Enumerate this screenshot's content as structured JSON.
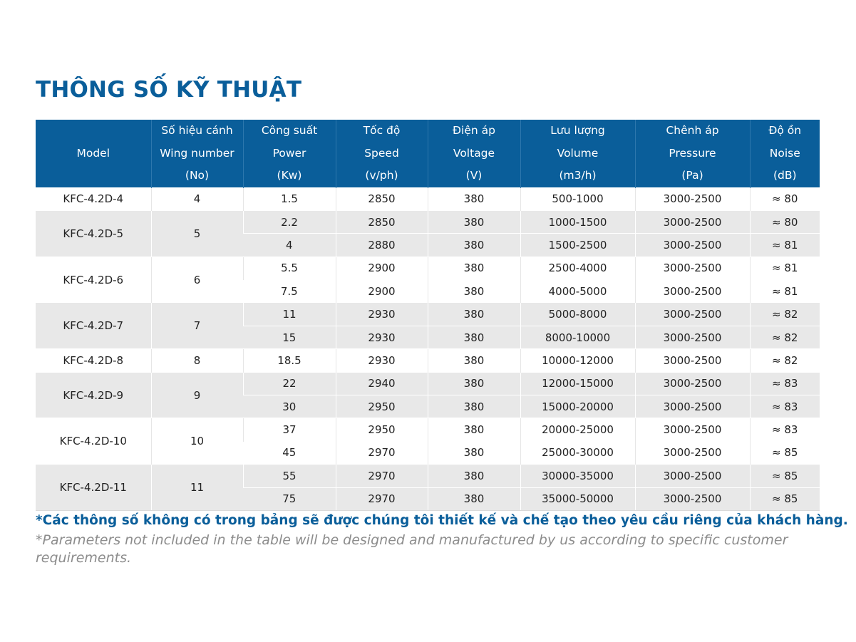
{
  "title": "THÔNG SỐ KỸ THUẬT",
  "headers": [
    {
      "lines": [
        "Model"
      ]
    },
    {
      "lines": [
        "Số hiệu cánh",
        "Wing number",
        "(No)"
      ]
    },
    {
      "lines": [
        "Công suất",
        "Power",
        "(Kw)"
      ]
    },
    {
      "lines": [
        "Tốc độ",
        "Speed",
        "(v/ph)"
      ]
    },
    {
      "lines": [
        "Điện áp",
        "Voltage",
        "(V)"
      ]
    },
    {
      "lines": [
        "Lưu lượng",
        "Volume",
        "(m3/h)"
      ]
    },
    {
      "lines": [
        "Chênh áp",
        "Pressure",
        "(Pa)"
      ]
    },
    {
      "lines": [
        "Độ ồn",
        "Noise",
        "(dB)"
      ]
    }
  ],
  "groups": [
    {
      "model": "KFC-4.2D-4",
      "wing": "4",
      "rows": [
        {
          "power": "1.5",
          "speed": "2850",
          "voltage": "380",
          "volume": "500-1000",
          "pressure": "3000-2500",
          "noise": "≈ 80"
        }
      ]
    },
    {
      "model": "KFC-4.2D-5",
      "wing": "5",
      "rows": [
        {
          "power": "2.2",
          "speed": "2850",
          "voltage": "380",
          "volume": "1000-1500",
          "pressure": "3000-2500",
          "noise": "≈ 80"
        },
        {
          "power": "4",
          "speed": "2880",
          "voltage": "380",
          "volume": "1500-2500",
          "pressure": "3000-2500",
          "noise": "≈ 81"
        }
      ]
    },
    {
      "model": "KFC-4.2D-6",
      "wing": "6",
      "rows": [
        {
          "power": "5.5",
          "speed": "2900",
          "voltage": "380",
          "volume": "2500-4000",
          "pressure": "3000-2500",
          "noise": "≈ 81"
        },
        {
          "power": "7.5",
          "speed": "2900",
          "voltage": "380",
          "volume": "4000-5000",
          "pressure": "3000-2500",
          "noise": "≈ 81"
        }
      ]
    },
    {
      "model": "KFC-4.2D-7",
      "wing": "7",
      "rows": [
        {
          "power": "11",
          "speed": "2930",
          "voltage": "380",
          "volume": "5000-8000",
          "pressure": "3000-2500",
          "noise": "≈ 82"
        },
        {
          "power": "15",
          "speed": "2930",
          "voltage": "380",
          "volume": "8000-10000",
          "pressure": "3000-2500",
          "noise": "≈ 82"
        }
      ]
    },
    {
      "model": "KFC-4.2D-8",
      "wing": "8",
      "rows": [
        {
          "power": "18.5",
          "speed": "2930",
          "voltage": "380",
          "volume": "10000-12000",
          "pressure": "3000-2500",
          "noise": "≈ 82"
        }
      ]
    },
    {
      "model": "KFC-4.2D-9",
      "wing": "9",
      "rows": [
        {
          "power": "22",
          "speed": "2940",
          "voltage": "380",
          "volume": "12000-15000",
          "pressure": "3000-2500",
          "noise": "≈ 83"
        },
        {
          "power": "30",
          "speed": "2950",
          "voltage": "380",
          "volume": "15000-20000",
          "pressure": "3000-2500",
          "noise": "≈ 83"
        }
      ]
    },
    {
      "model": "KFC-4.2D-10",
      "wing": "10",
      "rows": [
        {
          "power": "37",
          "speed": "2950",
          "voltage": "380",
          "volume": "20000-25000",
          "pressure": "3000-2500",
          "noise": "≈ 83"
        },
        {
          "power": "45",
          "speed": "2970",
          "voltage": "380",
          "volume": "25000-30000",
          "pressure": "3000-2500",
          "noise": "≈ 85"
        }
      ]
    },
    {
      "model": "KFC-4.2D-11",
      "wing": "11",
      "rows": [
        {
          "power": "55",
          "speed": "2970",
          "voltage": "380",
          "volume": "30000-35000",
          "pressure": "3000-2500",
          "noise": "≈ 85"
        },
        {
          "power": "75",
          "speed": "2970",
          "voltage": "380",
          "volume": "35000-50000",
          "pressure": "3000-2500",
          "noise": "≈ 85"
        }
      ]
    }
  ],
  "note_vi": "*Các thông số không có trong bảng sẽ được chúng tôi thiết kế và chế tạo theo yêu cầu riêng của khách hàng.",
  "note_en": "*Parameters not included in the table will be designed and manufactured by us according to specific customer requirements.",
  "colors": {
    "accent": "#0a5e9a",
    "shade": "#e8e8e8",
    "note_en": "#8c8c8c"
  }
}
